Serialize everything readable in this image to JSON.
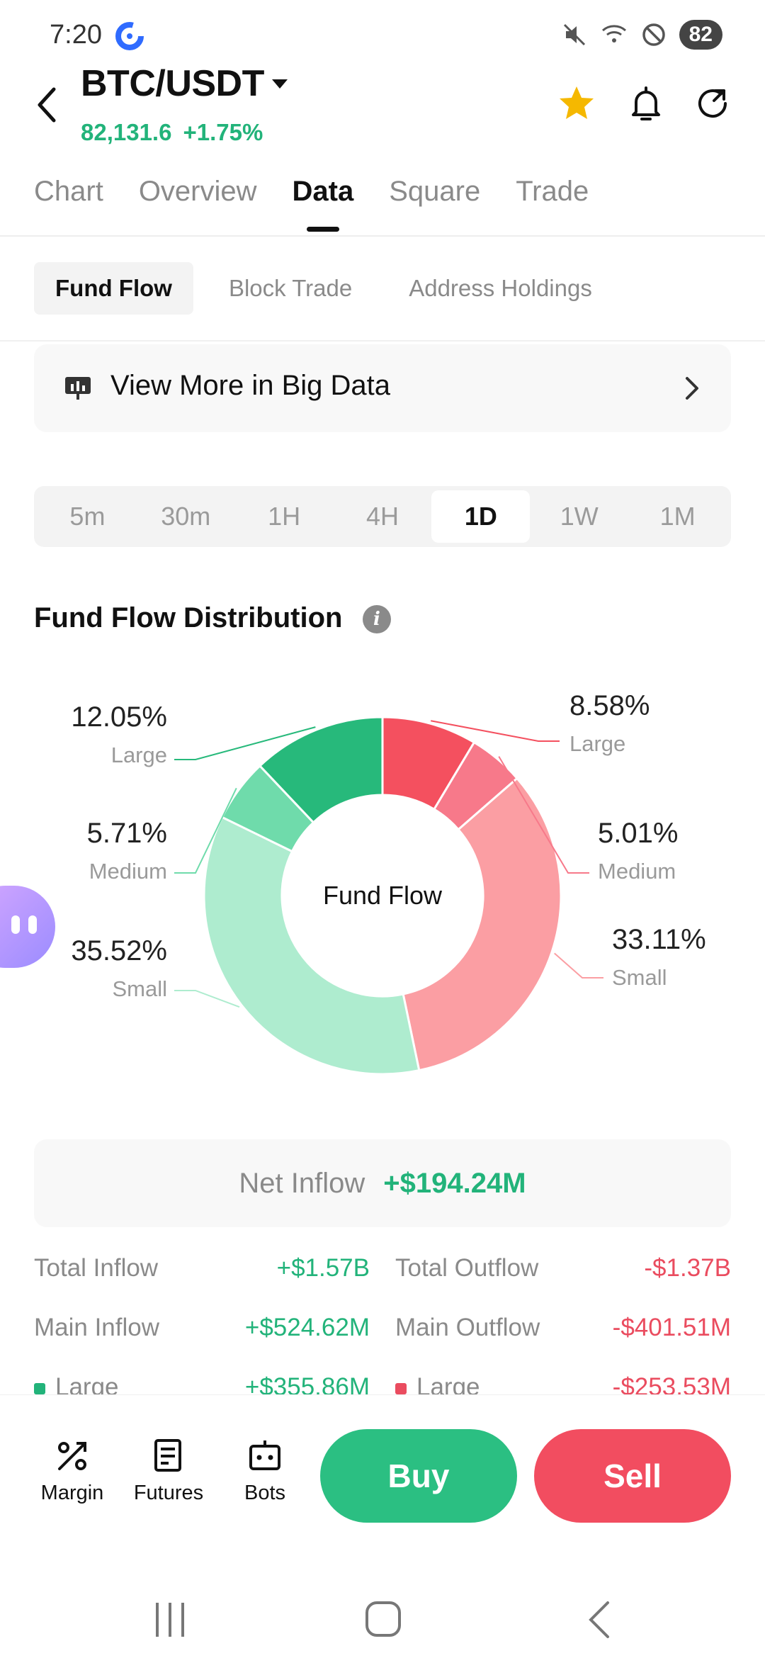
{
  "status_bar": {
    "time": "7:20",
    "battery": "82",
    "icons": [
      "mute-icon",
      "wifi-icon",
      "dnd-icon"
    ]
  },
  "header": {
    "pair": "BTC/USDT",
    "price": "82,131.6",
    "change": "+1.75%",
    "icons": [
      "star-icon",
      "bell-icon",
      "share-icon"
    ]
  },
  "tabs": [
    {
      "label": "Chart"
    },
    {
      "label": "Overview"
    },
    {
      "label": "Data"
    },
    {
      "label": "Square"
    },
    {
      "label": "Trade"
    }
  ],
  "active_tab": "Data",
  "subtabs": [
    {
      "label": "Fund Flow"
    },
    {
      "label": "Block Trade"
    },
    {
      "label": "Address Holdings"
    }
  ],
  "bigdata": {
    "label": "View More in Big Data"
  },
  "ranges": [
    "5m",
    "30m",
    "1H",
    "4H",
    "1D",
    "1W",
    "1M"
  ],
  "active_range": "1D",
  "section_title": "Fund Flow Distribution",
  "chart_data": {
    "type": "pie",
    "center_label": "Fund Flow",
    "categories": [
      "Large Inflow",
      "Medium Inflow",
      "Small Inflow",
      "Large Outflow",
      "Medium Outflow",
      "Small Outflow"
    ],
    "series": [
      {
        "values": [
          12.05,
          5.71,
          35.52,
          8.58,
          5.01,
          33.11
        ]
      }
    ],
    "labels": {
      "left": [
        {
          "pct": "12.05%",
          "size": "Large"
        },
        {
          "pct": "5.71%",
          "size": "Medium"
        },
        {
          "pct": "35.52%",
          "size": "Small"
        }
      ],
      "right": [
        {
          "pct": "8.58%",
          "size": "Large"
        },
        {
          "pct": "5.01%",
          "size": "Medium"
        },
        {
          "pct": "33.11%",
          "size": "Small"
        }
      ]
    },
    "colors": {
      "large_in": "#27b97b",
      "medium_in": "#6fdbab",
      "small_in": "#aeeccf",
      "large_out": "#f4505f",
      "medium_out": "#f7798a",
      "small_out": "#fb9ea3"
    }
  },
  "net_inflow": {
    "label": "Net Inflow",
    "value": "+$194.24M"
  },
  "stats": [
    {
      "l1": "Total Inflow",
      "v1": "+$1.57B",
      "l2": "Total Outflow",
      "v2": "-$1.37B"
    },
    {
      "l1": "Main Inflow",
      "v1": "+$524.62M",
      "l2": "Main Outflow",
      "v2": "-$401.51M"
    },
    {
      "l1": "Large",
      "v1": "+$355.86M",
      "l2": "Large",
      "v2": "-$253.53M"
    }
  ],
  "bottom_nav": [
    {
      "label": "Margin",
      "icon": "margin-icon"
    },
    {
      "label": "Futures",
      "icon": "futures-icon"
    },
    {
      "label": "Bots",
      "icon": "bots-icon"
    }
  ],
  "buy_label": "Buy",
  "sell_label": "Sell",
  "colors": {
    "green": "#22b37a",
    "red": "#ea4c5f",
    "buy": "#2bbf82",
    "sell": "#f24d60"
  }
}
